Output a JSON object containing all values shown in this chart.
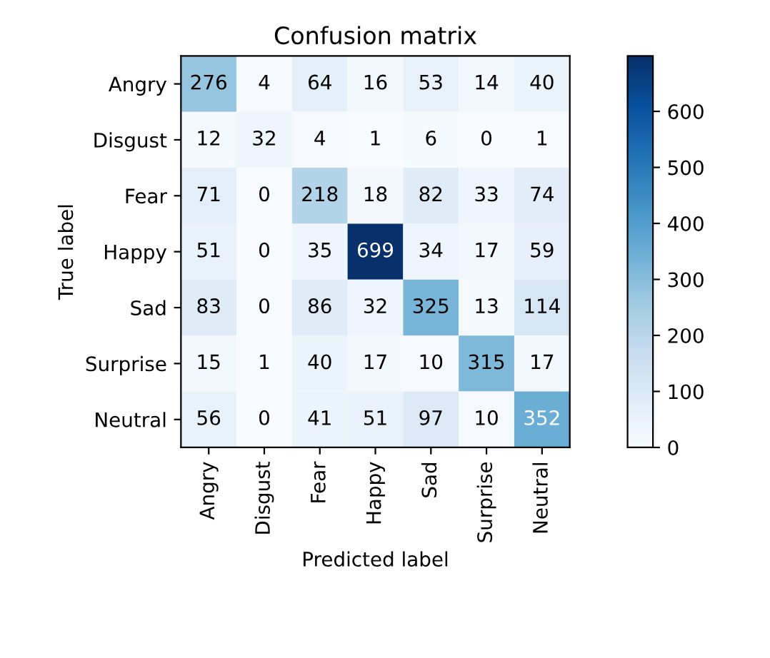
{
  "chart_data": {
    "type": "heatmap",
    "title": "Confusion matrix",
    "xlabel": "Predicted label",
    "ylabel": "True label",
    "categories": [
      "Angry",
      "Disgust",
      "Fear",
      "Happy",
      "Sad",
      "Surprise",
      "Neutral"
    ],
    "y_categories": [
      "Angry",
      "Disgust",
      "Fear",
      "Happy",
      "Sad",
      "Surprise",
      "Neutral"
    ],
    "cells": [
      [
        276,
        4,
        64,
        16,
        53,
        14,
        40
      ],
      [
        12,
        32,
        4,
        1,
        6,
        0,
        1
      ],
      [
        71,
        0,
        218,
        18,
        82,
        33,
        74
      ],
      [
        51,
        0,
        35,
        699,
        34,
        17,
        59
      ],
      [
        83,
        0,
        86,
        32,
        325,
        13,
        114
      ],
      [
        15,
        1,
        40,
        17,
        10,
        315,
        17
      ],
      [
        56,
        0,
        41,
        51,
        97,
        10,
        352
      ]
    ],
    "data_labels": true,
    "clim": [
      0,
      699
    ],
    "cticks": [
      0,
      100,
      200,
      300,
      400,
      500,
      600
    ]
  }
}
